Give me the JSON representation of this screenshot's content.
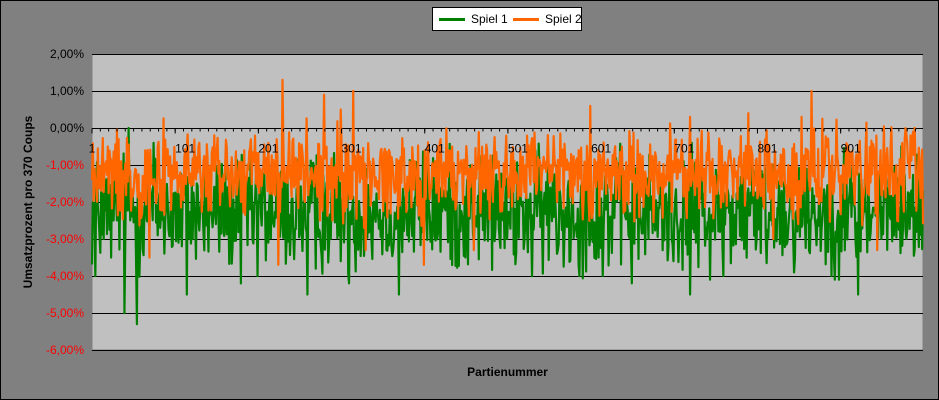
{
  "chart_data": {
    "type": "line",
    "title": "",
    "xlabel": "Partienummer",
    "ylabel": "Umsatzprozent pro 370 Coups",
    "x_tick_labels": [
      "1",
      "101",
      "201",
      "301",
      "401",
      "501",
      "601",
      "701",
      "801",
      "901"
    ],
    "x_range": [
      1,
      1000
    ],
    "y_tick_labels": [
      "2,00%",
      "1,00%",
      "0,00%",
      "-1,00%",
      "-2,00%",
      "-3,00%",
      "-4,00%",
      "-5,00%",
      "-6,00%"
    ],
    "ylim": [
      -6,
      2
    ],
    "grid": "horizontal",
    "legend_position": "top",
    "plot_background": "#c0c0c0",
    "negative_label_color": "#ff0000",
    "series": [
      {
        "name": "Spiel 1",
        "color": "#007f00",
        "typical_range": [
          -3.5,
          -1.0
        ],
        "points": [
          [
            5,
            -4.0
          ],
          [
            15,
            -3.0
          ],
          [
            27,
            -2.5
          ],
          [
            40,
            -5.0
          ],
          [
            45,
            0.0
          ],
          [
            50,
            -1.8
          ],
          [
            55,
            -5.3
          ],
          [
            65,
            -2.0
          ],
          [
            75,
            -0.4
          ],
          [
            80,
            -2.9
          ],
          [
            90,
            -2.1
          ],
          [
            105,
            -3.1
          ],
          [
            115,
            -4.5
          ],
          [
            150,
            -2.6
          ],
          [
            170,
            -3.2
          ],
          [
            180,
            -4.2
          ],
          [
            200,
            -4.0
          ],
          [
            235,
            -3.0
          ],
          [
            260,
            -4.5
          ],
          [
            270,
            -3.8
          ],
          [
            300,
            -3.6
          ],
          [
            310,
            -4.2
          ],
          [
            330,
            -1.1
          ],
          [
            355,
            -3.3
          ],
          [
            370,
            -4.5
          ],
          [
            400,
            -3.0
          ],
          [
            450,
            -3.5
          ],
          [
            500,
            -3.0
          ],
          [
            530,
            -4.0
          ],
          [
            560,
            -3.4
          ],
          [
            600,
            -3.0
          ],
          [
            615,
            -4.0
          ],
          [
            650,
            -4.2
          ],
          [
            700,
            -3.6
          ],
          [
            720,
            -4.5
          ],
          [
            740,
            -3.0
          ],
          [
            760,
            -4.0
          ],
          [
            800,
            -3.0
          ],
          [
            820,
            -1.0
          ],
          [
            850,
            -2.0
          ],
          [
            890,
            -4.0
          ],
          [
            900,
            -2.3
          ],
          [
            922,
            -4.5
          ],
          [
            950,
            -3.0
          ],
          [
            980,
            -3.0
          ],
          [
            1000,
            -1.7
          ]
        ]
      },
      {
        "name": "Spiel 2",
        "color": "#ff6600",
        "typical_range": [
          -2.2,
          -0.3
        ],
        "points": [
          [
            5,
            -1.5
          ],
          [
            20,
            -0.5
          ],
          [
            40,
            -1.5
          ],
          [
            70,
            -3.5
          ],
          [
            80,
            -0.5
          ],
          [
            110,
            -1.5
          ],
          [
            130,
            -0.4
          ],
          [
            150,
            -0.8
          ],
          [
            180,
            -2.0
          ],
          [
            200,
            -1.6
          ],
          [
            210,
            -0.8
          ],
          [
            225,
            -3.7
          ],
          [
            230,
            1.3
          ],
          [
            260,
            -1.0
          ],
          [
            275,
            -2.5
          ],
          [
            280,
            0.9
          ],
          [
            290,
            -2.5
          ],
          [
            300,
            0.5
          ],
          [
            315,
            1.0
          ],
          [
            330,
            -3.3
          ],
          [
            340,
            -1.0
          ],
          [
            400,
            -3.7
          ],
          [
            420,
            -0.3
          ],
          [
            460,
            -3.3
          ],
          [
            500,
            -1.2
          ],
          [
            560,
            -2.0
          ],
          [
            600,
            0.6
          ],
          [
            650,
            -0.5
          ],
          [
            700,
            -1.0
          ],
          [
            720,
            0.3
          ],
          [
            760,
            -2.0
          ],
          [
            790,
            0.4
          ],
          [
            820,
            -3.0
          ],
          [
            838,
            -1.0
          ],
          [
            850,
            -2.6
          ],
          [
            866,
            1.0
          ],
          [
            900,
            -1.3
          ],
          [
            945,
            -3.3
          ],
          [
            990,
            0.0
          ],
          [
            1000,
            -2.6
          ]
        ]
      }
    ]
  },
  "legend": {
    "entries": [
      {
        "label": "Spiel 1",
        "color": "#007f00"
      },
      {
        "label": "Spiel 2",
        "color": "#ff6600"
      }
    ]
  }
}
